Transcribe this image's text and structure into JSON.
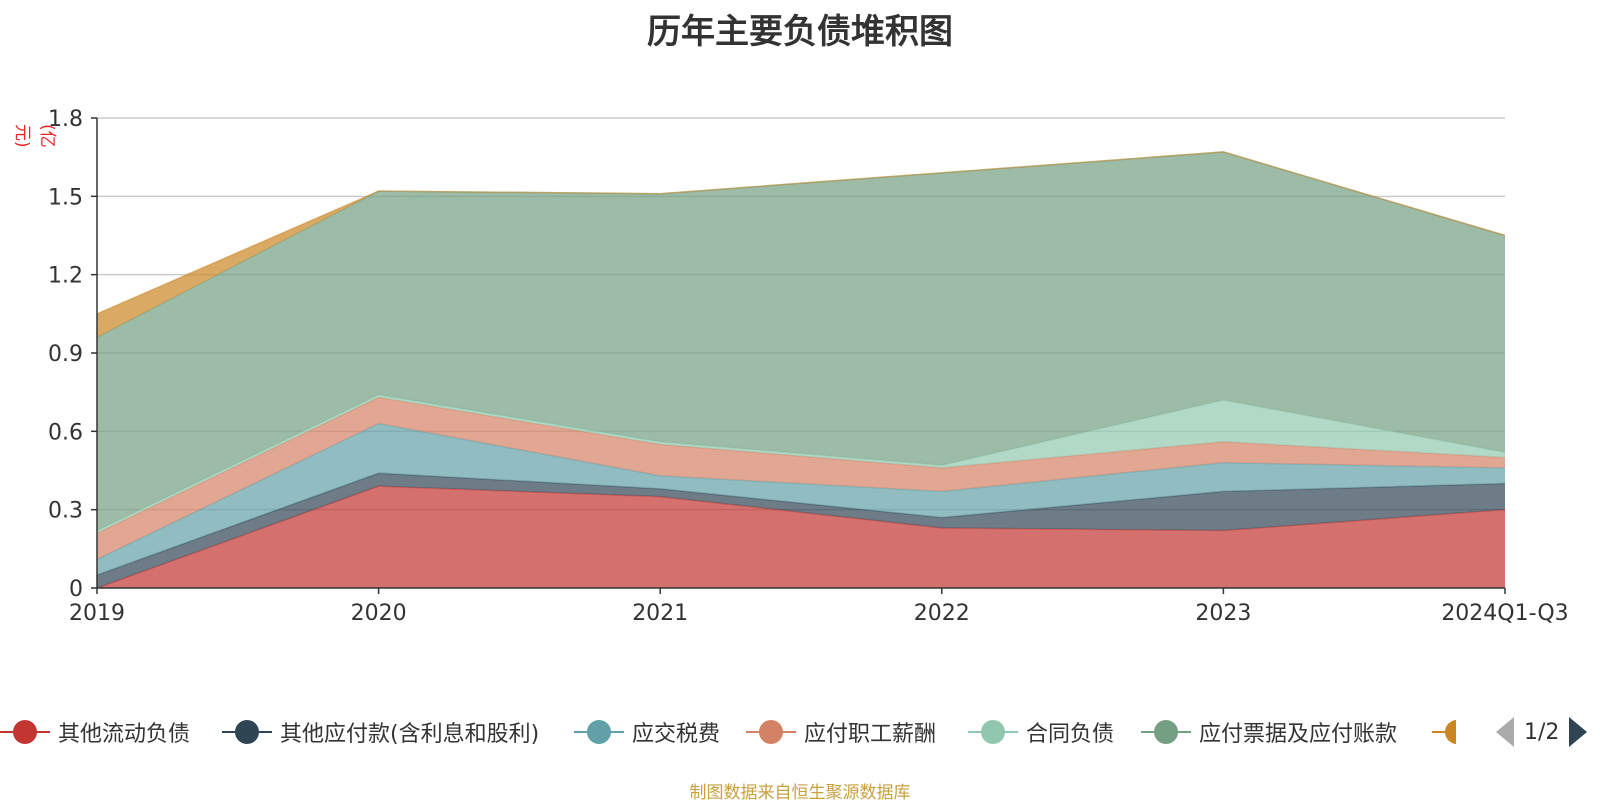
{
  "chart_data": {
    "type": "area",
    "stacked": true,
    "title": "历年主要负债堆积图",
    "unit_label": "(亿元)",
    "categories": [
      "2019",
      "2020",
      "2021",
      "2022",
      "2023",
      "2024Q1-Q3"
    ],
    "y_ticks": [
      "0",
      "0.3",
      "0.6",
      "0.9",
      "1.2",
      "1.5",
      "1.8"
    ],
    "ylim": [
      0,
      1.8
    ],
    "grid": true,
    "legend_position": "bottom",
    "series": [
      {
        "name": "其他流动负债",
        "color": "#c23531",
        "values": [
          0.0,
          0.39,
          0.35,
          0.23,
          0.22,
          0.3
        ]
      },
      {
        "name": "其他应付款(含利息和股利)",
        "color": "#2f4554",
        "values": [
          0.05,
          0.05,
          0.03,
          0.04,
          0.15,
          0.1
        ]
      },
      {
        "name": "应交税费",
        "color": "#61a0a8",
        "values": [
          0.06,
          0.19,
          0.05,
          0.1,
          0.11,
          0.06
        ]
      },
      {
        "name": "应付职工薪酬",
        "color": "#d48265",
        "values": [
          0.1,
          0.1,
          0.12,
          0.09,
          0.08,
          0.04
        ]
      },
      {
        "name": "合同负债",
        "color": "#91c7ae",
        "values": [
          0.01,
          0.01,
          0.01,
          0.01,
          0.16,
          0.02
        ]
      },
      {
        "name": "应付票据及应付账款",
        "color": "#749f83",
        "values": [
          0.74,
          0.78,
          0.95,
          1.12,
          0.95,
          0.83
        ]
      },
      {
        "name": "",
        "color": "#ca8622",
        "values": [
          0.09,
          0.0,
          0.0,
          0.0,
          0.0,
          0.0
        ]
      }
    ]
  },
  "legend": {
    "items": [
      {
        "label": "其他流动负债",
        "color": "#c23531"
      },
      {
        "label": "其他应付款(含利息和股利)",
        "color": "#2f4554"
      },
      {
        "label": "应交税费",
        "color": "#61a0a8"
      },
      {
        "label": "应付职工薪酬",
        "color": "#d48265"
      },
      {
        "label": "合同负债",
        "color": "#91c7ae"
      },
      {
        "label": "应付票据及应付账款",
        "color": "#749f83"
      }
    ],
    "partial_color": "#ca8622",
    "page": "1/2"
  },
  "footer": "制图数据来自恒生聚源数据库"
}
